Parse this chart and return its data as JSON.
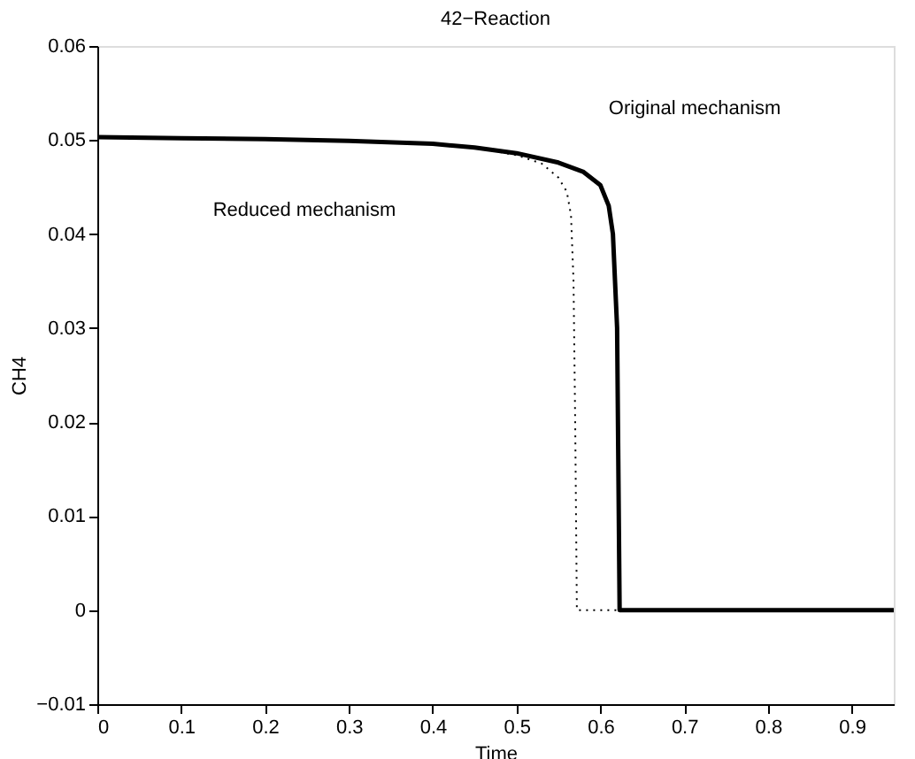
{
  "chart_data": {
    "type": "line",
    "title": "42−Reaction",
    "xlabel": "Time",
    "ylabel": "CH4",
    "xlim": [
      0,
      0.95
    ],
    "ylim": [
      -0.01,
      0.06
    ],
    "xticks": [
      0,
      0.1,
      0.2,
      0.3,
      0.4,
      0.5,
      0.6,
      0.7,
      0.8,
      0.9
    ],
    "yticks": [
      -0.01,
      0,
      0.01,
      0.02,
      0.03,
      0.04,
      0.05,
      0.06
    ],
    "grid": false,
    "marker": "none",
    "series": [
      {
        "color": "#000000",
        "line_style": "solid",
        "x": [
          0,
          0.1,
          0.2,
          0.3,
          0.4,
          0.45,
          0.5,
          0.55,
          0.58,
          0.6,
          0.61,
          0.615,
          0.62,
          0.622,
          0.623,
          0.7,
          0.8,
          0.95
        ],
        "values": [
          0.0503,
          0.0502,
          0.0501,
          0.0499,
          0.0496,
          0.0492,
          0.0486,
          0.0476,
          0.0466,
          0.0452,
          0.043,
          0.04,
          0.03,
          0.01,
          0,
          0,
          0,
          0
        ]
      },
      {
        "color": "#000000",
        "line_style": "dotted",
        "x": [
          0,
          0.1,
          0.2,
          0.3,
          0.4,
          0.45,
          0.5,
          0.53,
          0.55,
          0.56,
          0.565,
          0.568,
          0.57,
          0.572,
          0.7,
          0.8,
          0.95
        ],
        "values": [
          0.0503,
          0.0502,
          0.0501,
          0.0499,
          0.0496,
          0.0492,
          0.0484,
          0.0475,
          0.046,
          0.0445,
          0.042,
          0.035,
          0.02,
          0,
          0,
          0,
          0
        ]
      }
    ],
    "annotations": [
      "Original mechanism",
      "Reduced mechanism"
    ]
  }
}
